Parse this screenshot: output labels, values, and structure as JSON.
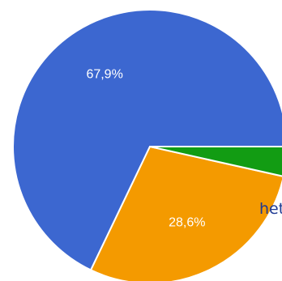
{
  "chart_data": {
    "type": "pie",
    "title": "",
    "slices": [
      {
        "value": 67.9,
        "label": "67,9%",
        "color": "#3c67d0"
      },
      {
        "value": 28.6,
        "label": "28,6%",
        "color": "#f49a00"
      },
      {
        "value": 3.5,
        "label": "",
        "color": "#129c13"
      }
    ],
    "start_direction": "east",
    "clockwise": false
  },
  "visible_text": {
    "legend_fragment": "hets"
  }
}
